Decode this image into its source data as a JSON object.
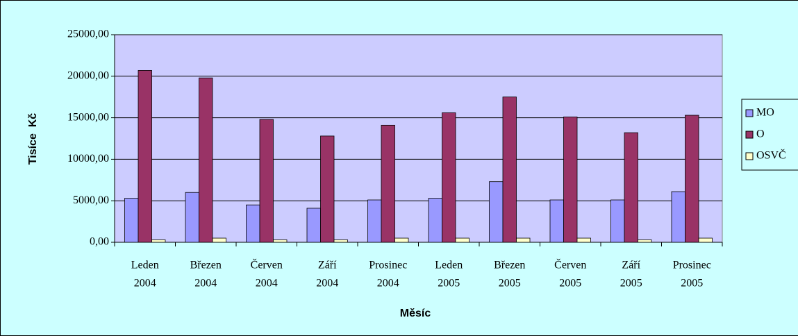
{
  "chart_data": {
    "type": "bar",
    "x_label": "Měsíc",
    "y_label": "Tisíce  Kč",
    "categories": [
      [
        "Leden",
        "2004"
      ],
      [
        "Březen",
        "2004"
      ],
      [
        "Červen",
        "2004"
      ],
      [
        "Září",
        "2004"
      ],
      [
        "Prosinec",
        "2004"
      ],
      [
        "Leden",
        "2005"
      ],
      [
        "Březen",
        "2005"
      ],
      [
        "Červen",
        "2005"
      ],
      [
        "Září",
        "2005"
      ],
      [
        "Prosinec",
        "2005"
      ]
    ],
    "series": [
      {
        "name": "MO",
        "color": "#9999ff",
        "values": [
          5300,
          6000,
          4500,
          4100,
          5100,
          5300,
          7300,
          5100,
          5100,
          6100
        ]
      },
      {
        "name": "O",
        "color": "#993366",
        "values": [
          20700,
          19800,
          14800,
          12800,
          14100,
          15600,
          17500,
          15100,
          13200,
          15300
        ]
      },
      {
        "name": "OSVČ",
        "color": "#ffffcc",
        "values": [
          300,
          500,
          300,
          300,
          500,
          500,
          500,
          500,
          300,
          500
        ]
      }
    ],
    "ylim": [
      0,
      25000
    ],
    "yticks": [
      {
        "value": 0,
        "label": "0,00"
      },
      {
        "value": 5000,
        "label": "5000,00"
      },
      {
        "value": 10000,
        "label": "10000,00"
      },
      {
        "value": 15000,
        "label": "15000,00"
      },
      {
        "value": 20000,
        "label": "20000,00"
      },
      {
        "value": 25000,
        "label": "25000,00"
      }
    ],
    "grid": true,
    "legend": "right"
  }
}
